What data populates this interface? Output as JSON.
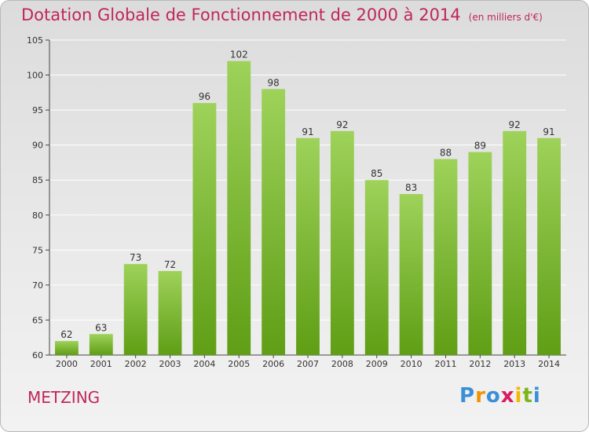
{
  "header": {
    "title": "Dotation Globale de Fonctionnement de 2000 à 2014",
    "subtitle": "(en milliers d'€)"
  },
  "footer": {
    "commune": "METZING",
    "brand_letters": [
      "P",
      "r",
      "o",
      "x",
      "i",
      "t",
      "i"
    ],
    "brand_colors": [
      "#3a8fd6",
      "#f39200",
      "#3a8fd6",
      "#d81b60",
      "#f5b800",
      "#7ab51d",
      "#3a8fd6"
    ]
  },
  "colors": {
    "title": "#c0275a",
    "bar_top": "#9ed25a",
    "bar_bottom": "#5f9e15",
    "grid": "#ffffff",
    "axis": "#444444"
  },
  "chart_data": {
    "type": "bar",
    "title": "Dotation Globale de Fonctionnement de 2000 à 2014",
    "subtitle": "(en milliers d'€)",
    "categories": [
      "2000",
      "2001",
      "2002",
      "2003",
      "2004",
      "2005",
      "2006",
      "2007",
      "2008",
      "2009",
      "2010",
      "2011",
      "2012",
      "2013",
      "2014"
    ],
    "values": [
      62,
      63,
      73,
      72,
      96,
      102,
      98,
      91,
      92,
      85,
      83,
      88,
      89,
      92,
      91
    ],
    "ylim": [
      60,
      105
    ],
    "yticks": [
      60,
      65,
      70,
      75,
      80,
      85,
      90,
      95,
      100,
      105
    ],
    "grid": true,
    "legend": "none"
  }
}
